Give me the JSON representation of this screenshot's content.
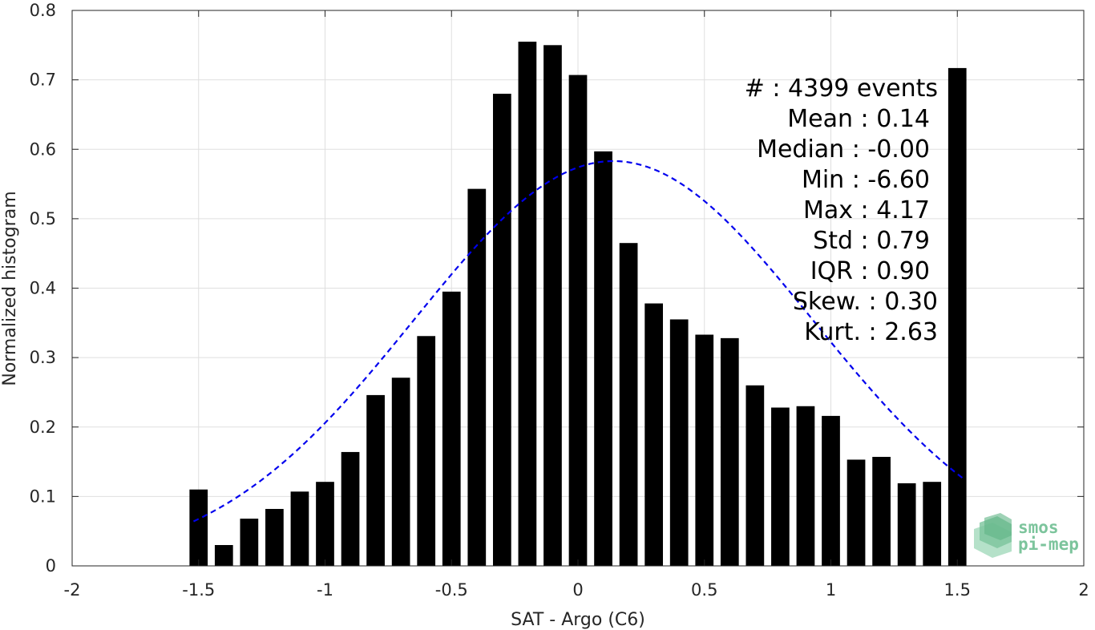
{
  "chart_data": {
    "type": "bar",
    "xlabel": "SAT - Argo (C6)",
    "ylabel": "Normalized histogram",
    "xlim": [
      -2,
      2
    ],
    "ylim": [
      0,
      0.8
    ],
    "xticks": [
      -2,
      -1.5,
      -1,
      -0.5,
      0,
      0.5,
      1,
      1.5,
      2
    ],
    "xtick_labels": [
      "-2",
      "-1.5",
      "-1",
      "-0.5",
      "0",
      "0.5",
      "1",
      "1.5",
      "2"
    ],
    "yticks": [
      0,
      0.1,
      0.2,
      0.3,
      0.4,
      0.5,
      0.6,
      0.7,
      0.8
    ],
    "ytick_labels": [
      "0",
      "0.1",
      "0.2",
      "0.3",
      "0.4",
      "0.5",
      "0.6",
      "0.7",
      "0.8"
    ],
    "grid": true,
    "bar_color": "#000000",
    "bins": [
      -1.5,
      -1.4,
      -1.3,
      -1.2,
      -1.1,
      -1.0,
      -0.9,
      -0.8,
      -0.7,
      -0.6,
      -0.5,
      -0.4,
      -0.3,
      -0.2,
      -0.1,
      0.0,
      0.1,
      0.2,
      0.3,
      0.4,
      0.5,
      0.6,
      0.7,
      0.8,
      0.9,
      1.0,
      1.1,
      1.2,
      1.3,
      1.4,
      1.5
    ],
    "values": [
      0.11,
      0.03,
      0.068,
      0.082,
      0.107,
      0.121,
      0.164,
      0.246,
      0.271,
      0.331,
      0.395,
      0.543,
      0.68,
      0.755,
      0.75,
      0.707,
      0.597,
      0.465,
      0.378,
      0.355,
      0.333,
      0.328,
      0.26,
      0.228,
      0.23,
      0.216,
      0.153,
      0.157,
      0.119,
      0.121,
      0.717
    ],
    "fit_curve": {
      "type": "normal",
      "mean": 0.14,
      "std": 0.79,
      "peak": 0.583,
      "x_range": [
        -1.52,
        1.52
      ],
      "color": "#0000ee",
      "style": "dashed"
    },
    "annotations": [
      "#  : 4399 events",
      "Mean : 0.14",
      "Median : -0.00",
      "Min : -6.60",
      "Max : 4.17",
      "Std : 0.79",
      "IQR : 0.90",
      "Skew. : 0.30",
      "Kurt. : 2.63"
    ]
  },
  "logo": {
    "line1": "smos",
    "line2": "pi-mep",
    "color": "#7cc49c"
  }
}
